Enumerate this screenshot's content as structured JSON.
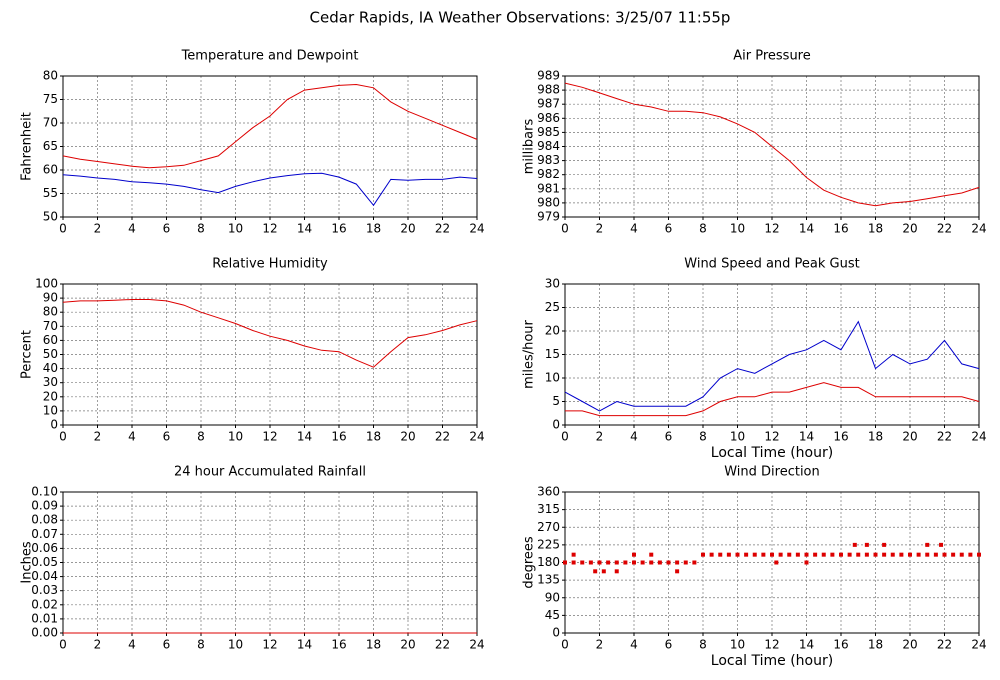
{
  "title": "Cedar Rapids, IA Weather Observations: 3/25/07 11:55p",
  "chart_data": [
    {
      "type": "line",
      "title": "Temperature and Dewpoint",
      "ylabel": "Fahrenheit",
      "x": [
        0,
        1,
        2,
        3,
        4,
        5,
        6,
        7,
        8,
        9,
        10,
        11,
        12,
        13,
        14,
        15,
        16,
        17,
        18,
        19,
        20,
        21,
        22,
        23,
        24
      ],
      "series": [
        {
          "color": "#dd0000",
          "values": [
            63,
            62.3,
            61.8,
            61.3,
            60.8,
            60.5,
            60.7,
            61,
            62,
            63,
            66,
            69,
            71.5,
            75,
            77,
            77.5,
            78,
            78.2,
            77.5,
            74.5,
            72.5,
            71,
            69.5,
            68,
            66.5
          ]
        },
        {
          "color": "#0000cc",
          "values": [
            59,
            58.7,
            58.3,
            58,
            57.5,
            57.3,
            57,
            56.5,
            55.8,
            55.2,
            56.5,
            57.5,
            58.3,
            58.8,
            59.2,
            59.3,
            58.5,
            57,
            52.5,
            58,
            57.8,
            58,
            58,
            58.5,
            58.2
          ]
        }
      ],
      "xlim": [
        0,
        24
      ],
      "xticks": [
        0,
        2,
        4,
        6,
        8,
        10,
        12,
        14,
        16,
        18,
        20,
        22,
        24
      ],
      "ylim": [
        50,
        80
      ],
      "yticks": [
        50,
        55,
        60,
        65,
        70,
        75,
        80
      ],
      "grid": true
    },
    {
      "type": "line",
      "title": "Air Pressure",
      "ylabel": "millibars",
      "x": [
        0,
        1,
        2,
        3,
        4,
        5,
        6,
        7,
        8,
        9,
        10,
        11,
        12,
        13,
        14,
        15,
        16,
        17,
        18,
        19,
        20,
        21,
        22,
        23,
        24
      ],
      "series": [
        {
          "color": "#dd0000",
          "values": [
            988.5,
            988.2,
            987.8,
            987.4,
            987,
            986.8,
            986.5,
            986.5,
            986.4,
            986.1,
            985.6,
            985,
            984,
            983,
            981.8,
            980.9,
            980.4,
            980,
            979.8,
            980,
            980.1,
            980.3,
            980.5,
            980.7,
            981.1
          ]
        }
      ],
      "xlim": [
        0,
        24
      ],
      "xticks": [
        0,
        2,
        4,
        6,
        8,
        10,
        12,
        14,
        16,
        18,
        20,
        22,
        24
      ],
      "ylim": [
        979,
        989
      ],
      "yticks": [
        979,
        980,
        981,
        982,
        983,
        984,
        985,
        986,
        987,
        988,
        989
      ],
      "grid": true
    },
    {
      "type": "line",
      "title": "Relative Humidity",
      "ylabel": "Percent",
      "x": [
        0,
        1,
        2,
        3,
        4,
        5,
        6,
        7,
        8,
        9,
        10,
        11,
        12,
        13,
        14,
        15,
        16,
        17,
        18,
        19,
        20,
        21,
        22,
        23,
        24
      ],
      "series": [
        {
          "color": "#dd0000",
          "values": [
            87,
            88,
            88,
            88.5,
            89,
            89,
            88,
            85,
            80,
            76,
            72,
            67,
            63,
            60,
            56,
            53,
            52,
            46,
            41,
            52,
            62,
            64,
            67,
            71,
            74
          ]
        }
      ],
      "xlim": [
        0,
        24
      ],
      "xticks": [
        0,
        2,
        4,
        6,
        8,
        10,
        12,
        14,
        16,
        18,
        20,
        22,
        24
      ],
      "ylim": [
        0,
        100
      ],
      "yticks": [
        0,
        10,
        20,
        30,
        40,
        50,
        60,
        70,
        80,
        90,
        100
      ],
      "grid": true
    },
    {
      "type": "line",
      "title": "Wind Speed and Peak Gust",
      "ylabel": "miles/hour",
      "xlabel": "Local Time (hour)",
      "x": [
        0,
        1,
        2,
        3,
        4,
        5,
        6,
        7,
        8,
        9,
        10,
        11,
        12,
        13,
        14,
        15,
        16,
        17,
        18,
        19,
        20,
        21,
        22,
        23,
        24
      ],
      "series": [
        {
          "color": "#0000cc",
          "values": [
            7,
            5,
            3,
            5,
            4,
            4,
            4,
            4,
            6,
            10,
            12,
            11,
            13,
            15,
            16,
            18,
            16,
            22,
            12,
            15,
            13,
            14,
            18,
            13,
            12
          ]
        },
        {
          "color": "#dd0000",
          "values": [
            3,
            3,
            2,
            2,
            2,
            2,
            2,
            2,
            3,
            5,
            6,
            6,
            7,
            7,
            8,
            9,
            8,
            8,
            6,
            6,
            6,
            6,
            6,
            6,
            5
          ]
        }
      ],
      "xlim": [
        0,
        24
      ],
      "xticks": [
        0,
        2,
        4,
        6,
        8,
        10,
        12,
        14,
        16,
        18,
        20,
        22,
        24
      ],
      "ylim": [
        0,
        30
      ],
      "yticks": [
        0,
        5,
        10,
        15,
        20,
        25,
        30
      ],
      "grid": true
    },
    {
      "type": "line",
      "title": "24 hour Accumulated Rainfall",
      "ylabel": "Inches",
      "x": [
        0,
        24
      ],
      "series": [
        {
          "color": "#dd0000",
          "values": [
            0,
            0
          ]
        }
      ],
      "xlim": [
        0,
        24
      ],
      "xticks": [
        0,
        2,
        4,
        6,
        8,
        10,
        12,
        14,
        16,
        18,
        20,
        22,
        24
      ],
      "ylim": [
        0,
        0.1
      ],
      "yticks": [
        {
          "value": 0,
          "label": "0.00"
        },
        {
          "value": 0.01,
          "label": "0.01"
        },
        {
          "value": 0.02,
          "label": "0.02"
        },
        {
          "value": 0.03,
          "label": "0.03"
        },
        {
          "value": 0.04,
          "label": "0.04"
        },
        {
          "value": 0.05,
          "label": "0.05"
        },
        {
          "value": 0.06,
          "label": "0.06"
        },
        {
          "value": 0.07,
          "label": "0.07"
        },
        {
          "value": 0.08,
          "label": "0.08"
        },
        {
          "value": 0.09,
          "label": "0.09"
        },
        {
          "value": 0.1,
          "label": "0.10"
        }
      ],
      "grid": true
    },
    {
      "type": "scatter",
      "title": "Wind Direction",
      "ylabel": "degrees",
      "xlabel": "Local Time (hour)",
      "x": [
        0,
        0.5,
        1,
        1.5,
        2,
        2.5,
        3,
        3.5,
        4,
        4.5,
        5,
        5.5,
        6,
        6.5,
        7,
        7.5,
        8,
        8.5,
        9,
        9.5,
        10,
        10.5,
        11,
        11.5,
        12,
        12.5,
        13,
        13.5,
        14,
        14.5,
        15,
        15.5,
        16,
        16.5,
        17,
        17.5,
        18,
        18.5,
        19,
        19.5,
        20,
        20.5,
        21,
        21.5,
        22,
        22.5,
        23,
        23.5,
        24,
        0.5,
        1.75,
        2.25,
        3,
        4,
        5,
        6.5,
        12.25,
        14,
        16.8,
        17.5,
        18.5,
        21,
        21.8
      ],
      "series": [
        {
          "color": "#dd0000",
          "values": [
            180,
            180,
            180,
            180,
            180,
            180,
            180,
            180,
            180,
            180,
            180,
            180,
            180,
            180,
            180,
            180,
            200,
            200,
            200,
            200,
            200,
            200,
            200,
            200,
            200,
            200,
            200,
            200,
            200,
            200,
            200,
            200,
            200,
            200,
            200,
            200,
            200,
            200,
            200,
            200,
            200,
            200,
            200,
            200,
            200,
            200,
            200,
            200,
            200,
            200,
            157.5,
            157.5,
            157.5,
            200,
            200,
            157.5,
            180,
            180,
            225,
            225,
            225,
            225,
            225
          ]
        }
      ],
      "xlim": [
        0,
        24
      ],
      "xticks": [
        0,
        2,
        4,
        6,
        8,
        10,
        12,
        14,
        16,
        18,
        20,
        22,
        24
      ],
      "ylim": [
        0,
        360
      ],
      "yticks": [
        0,
        45,
        90,
        135,
        180,
        225,
        270,
        315,
        360
      ],
      "grid": true
    }
  ]
}
